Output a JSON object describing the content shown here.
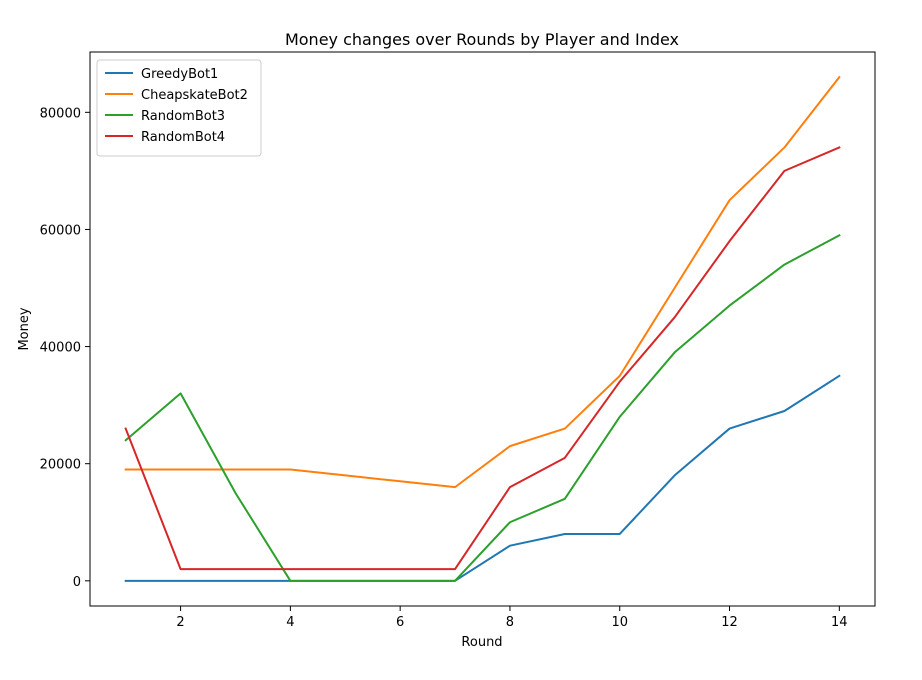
{
  "chart_data": {
    "type": "line",
    "title": "Money changes over Rounds by Player and Index",
    "xlabel": "Round",
    "ylabel": "Money",
    "xlim": [
      0.35,
      14.65
    ],
    "ylim": [
      -4300,
      90300
    ],
    "xticks": [
      2,
      4,
      6,
      8,
      10,
      12,
      14
    ],
    "yticks": [
      0,
      20000,
      40000,
      60000,
      80000
    ],
    "grid": false,
    "legend_position": "top-left",
    "x": [
      1,
      2,
      3,
      4,
      5,
      6,
      7,
      8,
      9,
      10,
      11,
      12,
      13,
      14
    ],
    "series": [
      {
        "name": "GreedyBot1",
        "color": "#1f77b4",
        "values": [
          0,
          0,
          0,
          0,
          0,
          0,
          0,
          6000,
          8000,
          8000,
          18000,
          26000,
          29000,
          35000
        ]
      },
      {
        "name": "CheapskateBot2",
        "color": "#ff7f0e",
        "values": [
          19000,
          19000,
          19000,
          19000,
          18000,
          17000,
          16000,
          23000,
          26000,
          35000,
          50000,
          65000,
          74000,
          86000
        ]
      },
      {
        "name": "RandomBot3",
        "color": "#2ca02c",
        "values": [
          24000,
          32000,
          15000,
          0,
          0,
          0,
          0,
          10000,
          14000,
          28000,
          39000,
          47000,
          54000,
          59000
        ]
      },
      {
        "name": "RandomBot4",
        "color": "#d62728",
        "values": [
          26000,
          2000,
          2000,
          2000,
          2000,
          2000,
          2000,
          16000,
          21000,
          34000,
          45000,
          58000,
          70000,
          74000
        ]
      }
    ]
  }
}
